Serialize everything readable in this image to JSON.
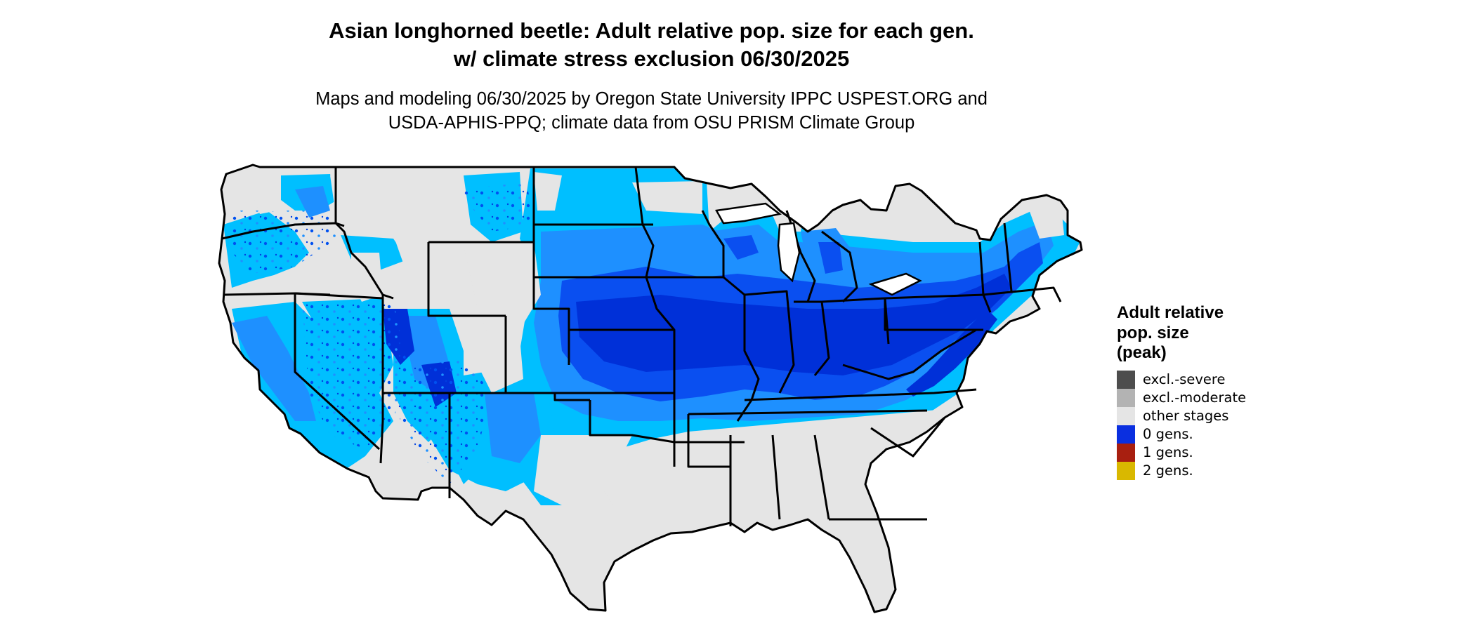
{
  "title_line1": "Asian longhorned beetle: Adult relative pop. size for each gen.",
  "title_line2": "w/ climate stress exclusion 06/30/2025",
  "subtitle_line1": "Maps and modeling 06/30/2025 by Oregon State University IPPC USPEST.ORG and",
  "subtitle_line2": "USDA-APHIS-PPQ; climate data from OSU PRISM Climate Group",
  "legend": {
    "title_line1": "Adult relative",
    "title_line2": "pop. size",
    "title_line3": "(peak)",
    "items": [
      {
        "label": "excl.-severe",
        "color": "#4d4d4d"
      },
      {
        "label": "excl.-moderate",
        "color": "#b3b3b3"
      },
      {
        "label": "other stages",
        "color": "#e5e5e5"
      },
      {
        "label": "0 gens.",
        "color": "#0a2fe0"
      },
      {
        "label": "1 gens.",
        "color": "#a81f10"
      },
      {
        "label": "2 gens.",
        "color": "#d9b800"
      }
    ]
  },
  "map": {
    "region": "Contiguous United States",
    "base_color": "#e5e5e5",
    "border_color": "#000000",
    "blue_shades": [
      "#00bfff",
      "#1e90ff",
      "#0066ff",
      "#0040e0"
    ]
  }
}
